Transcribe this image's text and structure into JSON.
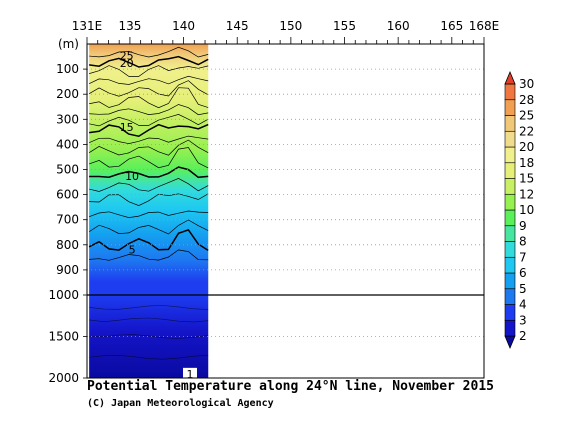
{
  "chart_data": {
    "type": "heatmap",
    "title": "Potential Temperature along 24°N line, November 2015",
    "credit": "(C) Japan Meteorological Agency",
    "ylabel": "(m)",
    "xlim": [
      131,
      168
    ],
    "x_ticks": [
      "131E",
      "135",
      "140",
      "145",
      "150",
      "155",
      "160",
      "165",
      "168E"
    ],
    "x_tick_values": [
      131,
      135,
      140,
      145,
      150,
      155,
      160,
      165,
      168
    ],
    "y_ticks_upper": [
      "100",
      "200",
      "300",
      "400",
      "500",
      "600",
      "700",
      "800",
      "900",
      "1000"
    ],
    "y_ticks_upper_values": [
      100,
      200,
      300,
      400,
      500,
      600,
      700,
      800,
      900,
      1000
    ],
    "y_ticks_lower": [
      "1500",
      "2000"
    ],
    "y_ticks_lower_values": [
      1500,
      2000
    ],
    "ylim": [
      0,
      2000
    ],
    "scale_break_depth": 1000,
    "data_lon_range": [
      131.2,
      142.3
    ],
    "grid": "dotted",
    "contour_labels": [
      {
        "text": "25",
        "lon": 134.7,
        "depth": 45
      },
      {
        "text": "20",
        "lon": 134.7,
        "depth": 75
      },
      {
        "text": "15",
        "lon": 134.7,
        "depth": 330
      },
      {
        "text": "10",
        "lon": 135.2,
        "depth": 525
      },
      {
        "text": "5",
        "lon": 135.2,
        "depth": 818
      },
      {
        "text": "1",
        "lon": 140.6,
        "depth": 1950
      }
    ],
    "temperature_levels": [
      2,
      3,
      4,
      5,
      6,
      7,
      8,
      9,
      10,
      12,
      15,
      18,
      20,
      22,
      25,
      28,
      30
    ],
    "colorbar": {
      "labels": [
        "2",
        "3",
        "4",
        "5",
        "6",
        "7",
        "8",
        "9",
        "10",
        "12",
        "15",
        "18",
        "20",
        "22",
        "25",
        "28",
        "30"
      ],
      "colors": [
        "#0a0aa0",
        "#1414c8",
        "#1e3cf0",
        "#1e78f0",
        "#14a0f0",
        "#1ec8f0",
        "#32dcdc",
        "#46e6a0",
        "#5af05a",
        "#96f050",
        "#c8f064",
        "#e6f078",
        "#f0f08c",
        "#f0dc8c",
        "#f0c878",
        "#f0a050",
        "#f07840",
        "#e0402a"
      ]
    }
  }
}
